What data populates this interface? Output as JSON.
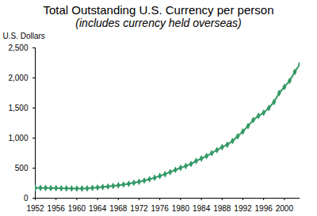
{
  "chart_data": {
    "type": "line",
    "title": "Total Outstanding U.S. Currency per person",
    "subtitle": "(includes currency held overseas)",
    "y_label": "U.S. Dollars",
    "x": [
      1952,
      1953,
      1954,
      1955,
      1956,
      1957,
      1958,
      1959,
      1960,
      1961,
      1962,
      1963,
      1964,
      1965,
      1966,
      1967,
      1968,
      1969,
      1970,
      1971,
      1972,
      1973,
      1974,
      1975,
      1976,
      1977,
      1978,
      1979,
      1980,
      1981,
      1982,
      1983,
      1984,
      1985,
      1986,
      1987,
      1988,
      1989,
      1990,
      1991,
      1992,
      1993,
      1994,
      1995,
      1996,
      1997,
      1998,
      1999,
      2000,
      2001,
      2002,
      2003
    ],
    "values": [
      170,
      172,
      170,
      168,
      167,
      165,
      163,
      162,
      160,
      160,
      163,
      170,
      178,
      186,
      195,
      204,
      215,
      228,
      240,
      256,
      272,
      292,
      315,
      340,
      370,
      400,
      435,
      470,
      505,
      535,
      570,
      620,
      660,
      700,
      750,
      800,
      850,
      890,
      950,
      1030,
      1110,
      1200,
      1300,
      1370,
      1420,
      1500,
      1600,
      1750,
      1850,
      1950,
      2100,
      2230
    ],
    "color": "#339966",
    "marker": "diamond",
    "xlim": [
      1952,
      2003
    ],
    "xticks": [
      1952,
      1956,
      1960,
      1964,
      1968,
      1972,
      1976,
      1980,
      1984,
      1988,
      1992,
      1996,
      2000
    ],
    "ylim": [
      0,
      2500
    ],
    "yticks": [
      0,
      500,
      {
        "value": 1000,
        "label": "1,000"
      },
      {
        "value": 1500,
        "label": "1,500"
      },
      {
        "value": 2000,
        "label": "2,000"
      },
      {
        "value": 2500,
        "label": "2,500"
      }
    ],
    "grid": false
  }
}
